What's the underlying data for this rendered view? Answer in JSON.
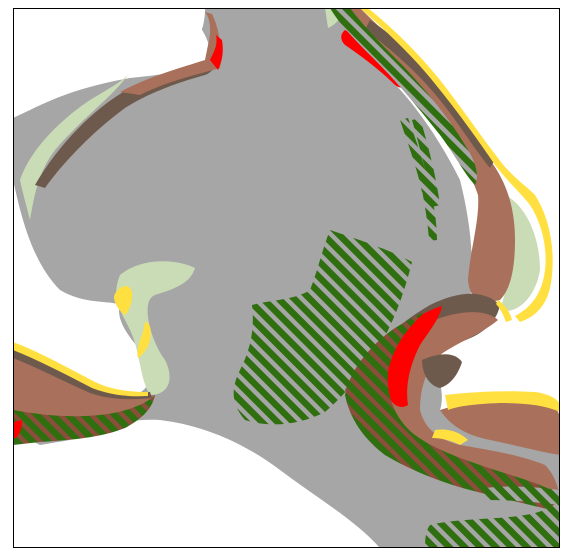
{
  "map": {
    "legend_colors": {
      "water_grey": "#a6a6a6",
      "land_white": "#ffffff",
      "pale_green_zone": "#c9dcb6",
      "brown_shore": "#a9705b",
      "dark_brown_shore": "#6e5a4c",
      "red_zone": "#ff0000",
      "yellow_beach": "#ffe040",
      "hatched_green_pattern": "#2f6f0f",
      "hatch_stripe_light": "#a6a6a6",
      "border": "#000000"
    },
    "features": [
      "water-body",
      "hatched-green-central-field",
      "hatched-green-northeast-strips",
      "hatched-green-southeast-band",
      "hatched-green-southwest-band",
      "red-shoreline-zones",
      "brown-shoreline-zones",
      "pale-green-zones",
      "yellow-beach-strips"
    ]
  }
}
